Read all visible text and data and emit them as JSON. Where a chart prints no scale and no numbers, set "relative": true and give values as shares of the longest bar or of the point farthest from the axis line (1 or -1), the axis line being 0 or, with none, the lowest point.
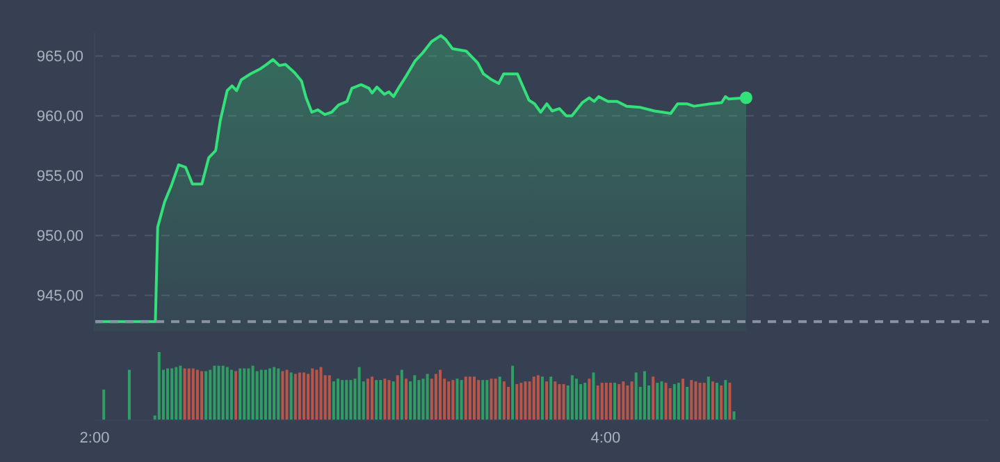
{
  "chart_data": [
    {
      "type": "area",
      "xlim": [
        2,
        5.5
      ],
      "ylim": [
        942,
        967
      ],
      "yticks": [
        {
          "value": 945,
          "label": "945,00"
        },
        {
          "value": 950,
          "label": "950,00"
        },
        {
          "value": 955,
          "label": "955,00"
        },
        {
          "value": 960,
          "label": "960,00"
        },
        {
          "value": 965,
          "label": "965,00"
        }
      ],
      "grid": "y",
      "tick_labels": "y",
      "ref_lines": [
        {
          "axis": "y",
          "value": 942.8,
          "color": "#8a93a3",
          "line_style": "dashed"
        }
      ],
      "series": [
        {
          "color": "#34e07a",
          "x": [
            2.002,
            2.238,
            2.247,
            2.274,
            2.301,
            2.329,
            2.356,
            2.383,
            2.42,
            2.447,
            2.474,
            2.492,
            2.519,
            2.538,
            2.556,
            2.574,
            2.61,
            2.647,
            2.674,
            2.698,
            2.723,
            2.747,
            2.783,
            2.81,
            2.828,
            2.85,
            2.874,
            2.901,
            2.928,
            2.955,
            2.988,
            3.007,
            3.043,
            3.074,
            3.086,
            3.105,
            3.134,
            3.152,
            3.17,
            3.192,
            3.219,
            3.255,
            3.282,
            3.319,
            3.355,
            3.373,
            3.401,
            3.455,
            3.5,
            3.522,
            3.555,
            3.582,
            3.601,
            3.655,
            3.7,
            3.722,
            3.746,
            3.77,
            3.791,
            3.819,
            3.846,
            3.868,
            3.909,
            3.936,
            3.955,
            3.973,
            4.009,
            4.045,
            4.082,
            4.136,
            4.191,
            4.255,
            4.282,
            4.318,
            4.346,
            4.409,
            4.454,
            4.469,
            4.482,
            4.55
          ],
          "values": [
            942.8,
            942.8,
            950.7,
            952.8,
            954.2,
            955.9,
            955.7,
            954.3,
            954.3,
            956.5,
            957.1,
            959.6,
            962.1,
            962.5,
            962.1,
            963.0,
            963.5,
            963.9,
            964.3,
            964.7,
            964.2,
            964.3,
            963.6,
            962.9,
            961.5,
            960.3,
            960.5,
            960.1,
            960.3,
            960.9,
            961.2,
            962.3,
            962.6,
            962.3,
            961.9,
            962.4,
            961.8,
            962.0,
            961.6,
            962.4,
            963.3,
            964.6,
            965.2,
            966.2,
            966.7,
            966.4,
            965.6,
            965.4,
            964.4,
            963.5,
            963.0,
            962.7,
            963.5,
            963.5,
            961.3,
            961.0,
            960.3,
            961.0,
            960.4,
            960.6,
            960.0,
            960.0,
            961.1,
            961.5,
            961.2,
            961.6,
            961.2,
            961.2,
            960.8,
            960.7,
            960.4,
            960.2,
            961.0,
            961.0,
            960.8,
            961.0,
            961.1,
            961.6,
            961.4,
            961.5
          ]
        }
      ]
    },
    {
      "type": "bar",
      "relative": true,
      "xlim": [
        2,
        5.5
      ],
      "xticks": [
        {
          "value": 2,
          "label": "2:00"
        },
        {
          "value": 4,
          "label": "4:00"
        }
      ],
      "tick_labels": "x",
      "x": [
        2.0333,
        2.1333,
        2.2333,
        2.25,
        2.2667,
        2.2833,
        2.3,
        2.3167,
        2.3333,
        2.35,
        2.3667,
        2.3833,
        2.4,
        2.4167,
        2.4333,
        2.45,
        2.4667,
        2.4833,
        2.5,
        2.5167,
        2.5333,
        2.55,
        2.5667,
        2.5833,
        2.6,
        2.6167,
        2.6333,
        2.65,
        2.6667,
        2.6833,
        2.7,
        2.7167,
        2.7333,
        2.75,
        2.7667,
        2.7833,
        2.8,
        2.8167,
        2.8333,
        2.85,
        2.8667,
        2.8833,
        2.9,
        2.9167,
        2.9333,
        2.95,
        2.9667,
        2.9833,
        3,
        3.0167,
        3.0333,
        3.05,
        3.0667,
        3.0833,
        3.1,
        3.1167,
        3.1333,
        3.15,
        3.1667,
        3.1833,
        3.2,
        3.2167,
        3.2333,
        3.25,
        3.2667,
        3.2833,
        3.3,
        3.3167,
        3.3333,
        3.35,
        3.3667,
        3.3833,
        3.4,
        3.4167,
        3.4333,
        3.45,
        3.4667,
        3.4833,
        3.5,
        3.5167,
        3.5333,
        3.55,
        3.5667,
        3.5833,
        3.6,
        3.6167,
        3.6333,
        3.65,
        3.6667,
        3.6833,
        3.7,
        3.7167,
        3.7333,
        3.75,
        3.7667,
        3.7833,
        3.8,
        3.8167,
        3.8333,
        3.85,
        3.8667,
        3.8833,
        3.9,
        3.9167,
        3.9333,
        3.95,
        3.9667,
        3.9833,
        4,
        4.0167,
        4.0333,
        4.05,
        4.0667,
        4.0833,
        4.1,
        4.1167,
        4.1333,
        4.15,
        4.1667,
        4.1833,
        4.2,
        4.2167,
        4.2333,
        4.25,
        4.2667,
        4.2833,
        4.3,
        4.3167,
        4.3333,
        4.35,
        4.3667,
        4.3833,
        4.4,
        4.4167,
        4.4333,
        4.45,
        4.4667,
        4.4833,
        4.5
      ],
      "values": [
        0.45,
        0.74,
        0.07,
        1,
        0.74,
        0.76,
        0.76,
        0.78,
        0.8,
        0.76,
        0.76,
        0.76,
        0.74,
        0.72,
        0.72,
        0.74,
        0.8,
        0.8,
        0.8,
        0.78,
        0.74,
        0.72,
        0.76,
        0.76,
        0.76,
        0.8,
        0.72,
        0.74,
        0.74,
        0.76,
        0.78,
        0.76,
        0.72,
        0.74,
        0.7,
        0.68,
        0.7,
        0.7,
        0.68,
        0.76,
        0.74,
        0.78,
        0.66,
        0.66,
        0.57,
        0.61,
        0.59,
        0.59,
        0.59,
        0.61,
        0.78,
        0.57,
        0.61,
        0.64,
        0.59,
        0.59,
        0.61,
        0.59,
        0.57,
        0.66,
        0.74,
        0.61,
        0.57,
        0.66,
        0.59,
        0.61,
        0.68,
        0.61,
        0.68,
        0.74,
        0.61,
        0.57,
        0.59,
        0.61,
        0.59,
        0.64,
        0.64,
        0.64,
        0.59,
        0.59,
        0.59,
        0.61,
        0.61,
        0.64,
        0.57,
        0.49,
        0.8,
        0.53,
        0.55,
        0.57,
        0.57,
        0.64,
        0.66,
        0.64,
        0.57,
        0.64,
        0.57,
        0.53,
        0.53,
        0.51,
        0.66,
        0.61,
        0.53,
        0.55,
        0.61,
        0.7,
        0.51,
        0.55,
        0.55,
        0.55,
        0.55,
        0.53,
        0.57,
        0.51,
        0.57,
        0.7,
        0.49,
        0.72,
        0.51,
        0.64,
        0.55,
        0.57,
        0.55,
        0.47,
        0.53,
        0.55,
        0.61,
        0.49,
        0.59,
        0.57,
        0.55,
        0.55,
        0.64,
        0.57,
        0.55,
        0.51,
        0.59,
        0.55,
        0.13
      ],
      "colors": [
        "#2f9e64",
        "#2f9e64",
        "#2f9e64",
        "#2f9e64",
        "#2f9e64",
        "#2f9e64",
        "#2f9e64",
        "#2f9e64",
        "#2f9e64",
        "#b8564a",
        "#b8564a",
        "#b8564a",
        "#b8564a",
        "#b8564a",
        "#2f9e64",
        "#2f9e64",
        "#2f9e64",
        "#2f9e64",
        "#2f9e64",
        "#2f9e64",
        "#2f9e64",
        "#b8564a",
        "#2f9e64",
        "#2f9e64",
        "#2f9e64",
        "#2f9e64",
        "#2f9e64",
        "#2f9e64",
        "#2f9e64",
        "#2f9e64",
        "#2f9e64",
        "#2f9e64",
        "#b8564a",
        "#b8564a",
        "#2f9e64",
        "#b8564a",
        "#b8564a",
        "#b8564a",
        "#b8564a",
        "#b8564a",
        "#b8564a",
        "#b8564a",
        "#b8564a",
        "#b8564a",
        "#2f9e64",
        "#2f9e64",
        "#2f9e64",
        "#2f9e64",
        "#2f9e64",
        "#2f9e64",
        "#2f9e64",
        "#2f9e64",
        "#b8564a",
        "#b8564a",
        "#2f9e64",
        "#2f9e64",
        "#b8564a",
        "#b8564a",
        "#2f9e64",
        "#b8564a",
        "#2f9e64",
        "#b8564a",
        "#2f9e64",
        "#2f9e64",
        "#2f9e64",
        "#2f9e64",
        "#2f9e64",
        "#b8564a",
        "#b8564a",
        "#b8564a",
        "#b8564a",
        "#b8564a",
        "#b8564a",
        "#2f9e64",
        "#2f9e64",
        "#b8564a",
        "#b8564a",
        "#b8564a",
        "#b8564a",
        "#2f9e64",
        "#2f9e64",
        "#b8564a",
        "#b8564a",
        "#2f9e64",
        "#b8564a",
        "#b8564a",
        "#2f9e64",
        "#b8564a",
        "#b8564a",
        "#b8564a",
        "#b8564a",
        "#b8564a",
        "#b8564a",
        "#2f9e64",
        "#b8564a",
        "#2f9e64",
        "#b8564a",
        "#b8564a",
        "#b8564a",
        "#2f9e64",
        "#2f9e64",
        "#2f9e64",
        "#2f9e64",
        "#2f9e64",
        "#b8564a",
        "#2f9e64",
        "#b8564a",
        "#b8564a",
        "#b8564a",
        "#b8564a",
        "#2f9e64",
        "#b8564a",
        "#b8564a",
        "#b8564a",
        "#b8564a",
        "#2f9e64",
        "#2f9e64",
        "#2f9e64",
        "#2f9e64",
        "#b8564a",
        "#2f9e64",
        "#2f9e64",
        "#b8564a",
        "#b8564a",
        "#2f9e64",
        "#2f9e64",
        "#b8564a",
        "#2f9e64",
        "#b8564a",
        "#b8564a",
        "#b8564a",
        "#b8564a",
        "#2f9e64",
        "#b8564a",
        "#2f9e64",
        "#b8564a",
        "#2f9e64",
        "#b8564a",
        "#2f9e64"
      ]
    }
  ]
}
